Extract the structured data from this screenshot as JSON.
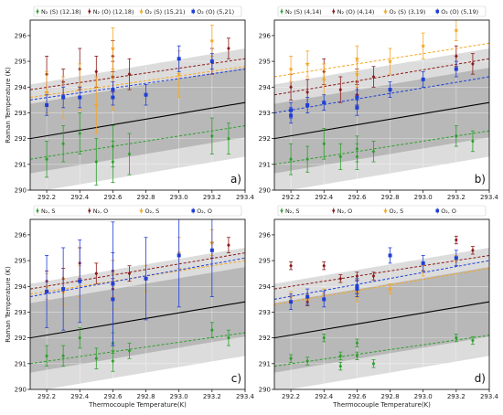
{
  "figure": {
    "shared_xlabel": "Thermocouple Temperature(K)",
    "shared_ylabel": "Raman Temperature (K)"
  },
  "chart_data": [
    {
      "type": "scatter",
      "panel_label": "a)",
      "xlabel": "",
      "ylabel": "Raman Temperature (K)",
      "xlim": [
        292.1,
        293.4
      ],
      "ylim": [
        290,
        296.6
      ],
      "xticks": [
        "292.2",
        "292.4",
        "292.6",
        "292.8",
        "293.0",
        "293.2",
        "293.4"
      ],
      "yticks": [
        "290",
        "291",
        "292",
        "293",
        "294",
        "295",
        "296"
      ],
      "grid": true,
      "legend_position": "top",
      "series": [
        {
          "name": "N2 (S) (12,18)",
          "legend": "N₂ (S) (12,18)",
          "color": "#2ca02c",
          "marker": "diamond",
          "x": [
            292.2,
            292.3,
            292.4,
            292.5,
            292.6,
            292.6,
            292.7,
            293.2,
            293.3
          ],
          "y": [
            291.2,
            291.8,
            292.2,
            291.1,
            291.7,
            291.1,
            291.4,
            292.1,
            292.0
          ],
          "err": [
            0.7,
            0.7,
            0.8,
            0.9,
            0.8,
            0.8,
            0.8,
            0.7,
            0.6
          ],
          "fit": [
            291.2,
            292.5
          ]
        },
        {
          "name": "N2 (O) (12,18)",
          "legend": "N₂ (O) (12,18)",
          "color": "#8b1a1a",
          "marker": "diamond",
          "x": [
            292.2,
            292.3,
            292.4,
            292.5,
            292.6,
            292.6,
            292.7,
            293.2,
            293.3
          ],
          "y": [
            294.5,
            294.2,
            294.7,
            294.6,
            295.2,
            294.4,
            294.5,
            295.0,
            295.5
          ],
          "err": [
            0.7,
            0.5,
            0.8,
            0.6,
            0.6,
            0.6,
            0.6,
            0.5,
            0.4
          ],
          "fit": [
            293.9,
            295.1
          ]
        },
        {
          "name": "O2 (S) (15,21)",
          "legend": "O₂ (S) (15,21)",
          "color": "#f5a623",
          "marker": "star",
          "x": [
            292.2,
            292.3,
            292.4,
            292.5,
            292.6,
            292.6,
            293.0,
            293.2
          ],
          "y": [
            293.8,
            293.6,
            294.0,
            293.3,
            295.5,
            293.9,
            294.5,
            295.8
          ],
          "err": [
            0.8,
            0.8,
            0.9,
            1.1,
            0.8,
            0.8,
            0.9,
            0.6
          ],
          "fit": [
            293.6,
            294.8
          ]
        },
        {
          "name": "O2 (O) (5,21)",
          "legend": "O₂ (O) (5,21)",
          "color": "#1f3fd6",
          "marker": "square",
          "x": [
            292.2,
            292.3,
            292.4,
            292.6,
            292.6,
            292.8,
            293.0,
            293.2
          ],
          "y": [
            293.3,
            293.6,
            293.6,
            293.9,
            293.6,
            293.7,
            295.1,
            295.0
          ],
          "err": [
            0.4,
            0.4,
            0.4,
            0.3,
            0.3,
            0.4,
            0.5,
            0.3
          ],
          "fit": [
            293.5,
            294.7
          ]
        }
      ],
      "reference_line": [
        292.0,
        293.4
      ],
      "band_inner": 1.35,
      "band_outer": 2.1
    },
    {
      "type": "scatter",
      "panel_label": "b)",
      "xlabel": "",
      "ylabel": "",
      "xlim": [
        292.1,
        293.4
      ],
      "ylim": [
        290,
        296.6
      ],
      "xticks": [
        "292.2",
        "292.4",
        "292.6",
        "292.8",
        "293.0",
        "293.2",
        "293.4"
      ],
      "yticks": [
        "290",
        "291",
        "292",
        "293",
        "294",
        "295",
        "296"
      ],
      "grid": true,
      "legend_position": "top",
      "series": [
        {
          "name": "N2 (S) (4,14)",
          "legend": "N₂ (S) (4,14)",
          "color": "#2ca02c",
          "marker": "diamond",
          "x": [
            292.2,
            292.3,
            292.4,
            292.5,
            292.6,
            292.6,
            292.7,
            293.2,
            293.3
          ],
          "y": [
            291.2,
            291.2,
            291.8,
            291.3,
            291.6,
            291.3,
            291.5,
            292.1,
            291.9
          ],
          "err": [
            0.6,
            0.5,
            0.6,
            0.5,
            0.5,
            0.5,
            0.4,
            0.4,
            0.4
          ],
          "fit": [
            291.0,
            292.3
          ]
        },
        {
          "name": "N2 (O) (4,14)",
          "legend": "N₂ (O) (4,14)",
          "color": "#8b1a1a",
          "marker": "diamond",
          "x": [
            292.2,
            292.3,
            292.4,
            292.5,
            292.6,
            292.6,
            292.7,
            293.2,
            293.3
          ],
          "y": [
            294.0,
            293.8,
            294.6,
            293.9,
            294.2,
            293.7,
            294.4,
            295.2,
            294.9
          ],
          "err": [
            0.5,
            0.5,
            0.5,
            0.5,
            0.5,
            0.4,
            0.4,
            0.4,
            0.4
          ],
          "fit": [
            293.7,
            295.1
          ]
        },
        {
          "name": "O2 (S) (3,19)",
          "legend": "O₂ (S) (3,19)",
          "color": "#f5a623",
          "marker": "star",
          "x": [
            292.2,
            292.3,
            292.4,
            292.6,
            292.6,
            292.8,
            293.0,
            293.2
          ],
          "y": [
            294.7,
            294.9,
            294.3,
            295.1,
            294.5,
            295.0,
            295.6,
            296.2
          ],
          "err": [
            0.5,
            0.5,
            0.6,
            0.5,
            0.5,
            0.5,
            0.5,
            0.4
          ],
          "fit": [
            294.4,
            295.7
          ]
        },
        {
          "name": "O2 (O) (5,19)",
          "legend": "O₂ (O) (5,19)",
          "color": "#1f3fd6",
          "marker": "square",
          "x": [
            292.2,
            292.2,
            292.3,
            292.4,
            292.6,
            292.6,
            292.8,
            293.0,
            293.2
          ],
          "y": [
            292.9,
            293.1,
            293.3,
            293.4,
            293.2,
            293.6,
            293.9,
            294.3,
            294.7
          ],
          "err": [
            0.3,
            0.3,
            0.3,
            0.3,
            0.3,
            0.3,
            0.3,
            0.3,
            0.3
          ],
          "fit": [
            293.0,
            294.4
          ]
        }
      ],
      "reference_line": [
        292.0,
        293.4
      ],
      "band_inner": 1.35,
      "band_outer": 2.1
    },
    {
      "type": "scatter",
      "panel_label": "c)",
      "xlabel": "Thermocouple Temperature(K)",
      "ylabel": "Raman Temperature (K)",
      "xlim": [
        292.1,
        293.4
      ],
      "ylim": [
        290,
        296.6
      ],
      "xticks": [
        "292.2",
        "292.4",
        "292.6",
        "292.8",
        "293.0",
        "293.2",
        "293.4"
      ],
      "yticks": [
        "290",
        "291",
        "292",
        "293",
        "294",
        "295",
        "296"
      ],
      "grid": true,
      "legend_position": "top",
      "series": [
        {
          "name": "N2, S",
          "legend": "N₂, S",
          "color": "#2ca02c",
          "marker": "diamond",
          "x": [
            292.2,
            292.3,
            292.4,
            292.5,
            292.6,
            292.6,
            292.7,
            293.2,
            293.3
          ],
          "y": [
            291.3,
            291.3,
            292.0,
            291.2,
            291.8,
            291.1,
            291.5,
            292.3,
            292.0
          ],
          "err": [
            0.4,
            0.4,
            0.4,
            0.4,
            0.4,
            0.4,
            0.3,
            0.3,
            0.3
          ],
          "fit": [
            291.0,
            292.2
          ]
        },
        {
          "name": "N2, O",
          "legend": "N₂, O",
          "color": "#8b1a1a",
          "marker": "diamond",
          "x": [
            292.2,
            292.3,
            292.4,
            292.5,
            292.6,
            292.6,
            292.7,
            293.2,
            293.3
          ],
          "y": [
            294.2,
            294.3,
            294.9,
            294.5,
            294.6,
            293.9,
            294.5,
            295.4,
            295.6
          ],
          "err": [
            0.4,
            0.4,
            0.6,
            0.4,
            0.4,
            0.4,
            0.3,
            0.3,
            0.3
          ],
          "fit": [
            293.9,
            295.3
          ]
        },
        {
          "name": "O2, S",
          "legend": "O₂, S",
          "color": "#f5a623",
          "marker": "star",
          "x": [
            292.2,
            292.3,
            292.4,
            292.6,
            292.6,
            292.8,
            293.0,
            293.2
          ],
          "y": [
            294.0,
            293.8,
            294.2,
            294.5,
            293.6,
            294.3,
            295.3,
            295.7
          ],
          "err": [
            0.5,
            0.5,
            0.6,
            0.5,
            0.5,
            0.5,
            0.6,
            0.5
          ],
          "fit": [
            293.7,
            295.0
          ]
        },
        {
          "name": "O2, O",
          "legend": "O₂, O",
          "color": "#1f3fd6",
          "marker": "square",
          "x": [
            292.2,
            292.3,
            292.4,
            292.6,
            292.6,
            292.8,
            293.0,
            293.2
          ],
          "y": [
            293.8,
            293.9,
            294.2,
            293.5,
            294.1,
            294.3,
            295.2,
            295.4
          ],
          "err": [
            1.4,
            1.6,
            1.6,
            1.8,
            2.4,
            1.6,
            2.0,
            1.8
          ],
          "fit": [
            293.6,
            295.1
          ]
        }
      ],
      "reference_line": [
        292.0,
        293.4
      ],
      "band_inner": 1.35,
      "band_outer": 2.1
    },
    {
      "type": "scatter",
      "panel_label": "d)",
      "xlabel": "Thermocouple Temperature(K)",
      "ylabel": "",
      "xlim": [
        292.1,
        293.4
      ],
      "ylim": [
        290,
        296.6
      ],
      "xticks": [
        "292.2",
        "292.4",
        "292.6",
        "292.8",
        "293.0",
        "293.2",
        "293.4"
      ],
      "yticks": [
        "290",
        "291",
        "292",
        "293",
        "294",
        "295",
        "296"
      ],
      "grid": true,
      "legend_position": "top",
      "series": [
        {
          "name": "N2, S",
          "legend": "N₂, S",
          "color": "#2ca02c",
          "marker": "diamond",
          "x": [
            292.2,
            292.3,
            292.4,
            292.5,
            292.5,
            292.6,
            292.6,
            292.7,
            293.2,
            293.3
          ],
          "y": [
            291.2,
            291.1,
            292.0,
            290.9,
            291.3,
            291.8,
            291.3,
            291.0,
            292.0,
            291.9
          ],
          "err": [
            0.15,
            0.15,
            0.15,
            0.15,
            0.15,
            0.15,
            0.15,
            0.15,
            0.15,
            0.15
          ],
          "fit": [
            290.9,
            292.1
          ]
        },
        {
          "name": "N2, O",
          "legend": "N₂, O",
          "color": "#8b1a1a",
          "marker": "diamond",
          "x": [
            292.2,
            292.3,
            292.4,
            292.5,
            292.6,
            292.6,
            292.7,
            293.2,
            293.3
          ],
          "y": [
            294.8,
            293.4,
            294.8,
            294.3,
            294.4,
            293.9,
            294.4,
            295.8,
            295.4
          ],
          "err": [
            0.15,
            0.15,
            0.15,
            0.15,
            0.15,
            0.15,
            0.15,
            0.15,
            0.15
          ],
          "fit": [
            293.9,
            295.2
          ]
        },
        {
          "name": "O2, S",
          "legend": "O₂, S",
          "color": "#f5a623",
          "marker": "star",
          "x": [
            292.2,
            292.3,
            292.4,
            292.6,
            292.6,
            292.8,
            293.0,
            293.2
          ],
          "y": [
            293.6,
            293.5,
            293.7,
            293.6,
            293.8,
            293.9,
            294.6,
            295.0
          ],
          "err": [
            0.2,
            0.2,
            0.2,
            0.2,
            0.2,
            0.2,
            0.2,
            0.2
          ],
          "fit": [
            293.3,
            294.7
          ]
        },
        {
          "name": "O2, O",
          "legend": "O₂, O",
          "color": "#1f3fd6",
          "marker": "square",
          "x": [
            292.2,
            292.3,
            292.4,
            292.6,
            292.6,
            292.8,
            293.0,
            293.2
          ],
          "y": [
            293.4,
            293.6,
            293.5,
            294.0,
            293.9,
            295.2,
            294.9,
            295.1
          ],
          "err": [
            0.3,
            0.3,
            0.3,
            0.3,
            0.3,
            0.3,
            0.3,
            0.3
          ],
          "fit": [
            293.5,
            295.0
          ]
        }
      ],
      "reference_line": [
        292.0,
        293.4
      ],
      "band_inner": 1.35,
      "band_outer": 2.1
    }
  ]
}
